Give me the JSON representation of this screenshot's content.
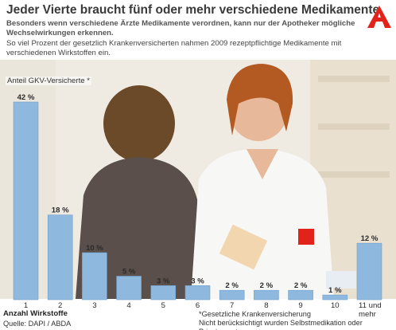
{
  "header": {
    "title": "Jeder Vierte braucht fünf oder mehr verschiedene Medikamente",
    "subtitle": "Besonders wenn verschiedene Ärzte Medikamente verordnen, kann nur der Apotheker mögliche Wechselwirkungen erkennen.",
    "description": "So viel Prozent der gesetzlich Krankenversicherten nahmen 2009 rezeptpflichtige Medikamente mit verschiedenen Wirkstoffen ein."
  },
  "footer": {
    "source": "Quelle: DAPI / ABDA",
    "footnote_line1": "*Gesetzliche Krankenversicherung",
    "footnote_line2": "Nicht berücksichtigt wurden Selbstmedikation oder Privatrezepte."
  },
  "colors": {
    "bar": "#8fb8de",
    "bar_edge": "#6f9fcc",
    "logo": "#e2231a"
  },
  "icons": {
    "logo": "apotheke-a-icon"
  },
  "chart_data": {
    "type": "bar",
    "ylabel": "Anteil GKV-Versicherte *",
    "xlabel": "Anzahl Wirkstoffe",
    "categories": [
      "1",
      "2",
      "3",
      "4",
      "5",
      "6",
      "7",
      "8",
      "9",
      "10",
      "11 und mehr"
    ],
    "values": [
      42,
      18,
      10,
      5,
      3,
      3,
      2,
      2,
      2,
      1,
      12
    ],
    "value_labels": [
      "42 %",
      "18 %",
      "10 %",
      "5 %",
      "3 %",
      "3 %",
      "2 %",
      "2 %",
      "2 %",
      "1 %",
      "12 %"
    ],
    "ylim": [
      0,
      42
    ],
    "grid": false
  }
}
